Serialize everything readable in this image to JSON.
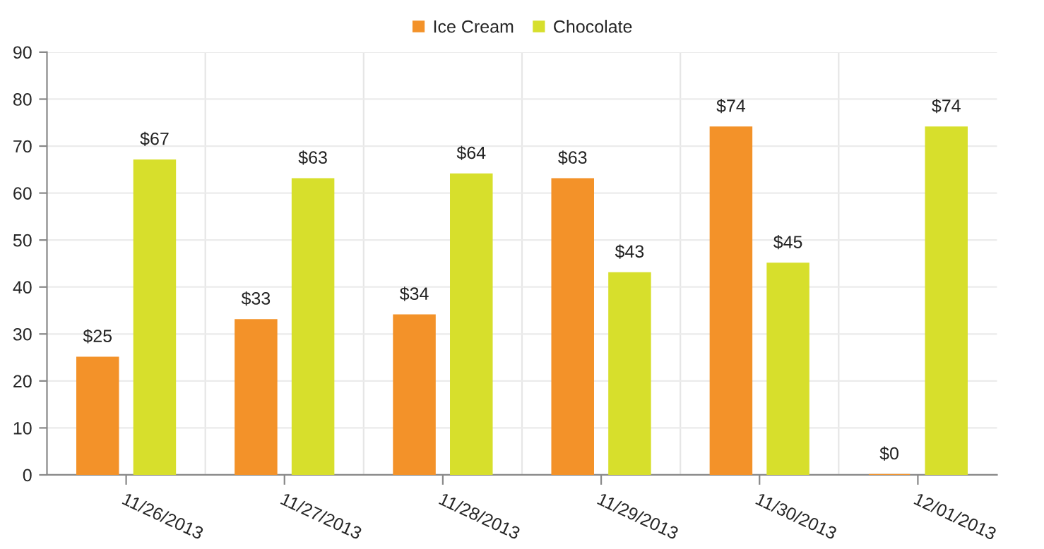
{
  "chart_data": {
    "type": "bar",
    "categories": [
      "11/26/2013",
      "11/27/2013",
      "11/28/2013",
      "11/29/2013",
      "11/30/2013",
      "12/01/2013"
    ],
    "series": [
      {
        "name": "Ice Cream",
        "color": "#f39229",
        "values": [
          25,
          33,
          34,
          63,
          74,
          0
        ],
        "value_labels": [
          "$25",
          "$33",
          "$34",
          "$63",
          "$74",
          "$0"
        ]
      },
      {
        "name": "Chocolate",
        "color": "#d7df2c",
        "values": [
          67,
          63,
          64,
          43,
          45,
          74
        ],
        "value_labels": [
          "$67",
          "$63",
          "$64",
          "$43",
          "$45",
          "$74"
        ]
      }
    ],
    "ylim": [
      0,
      90
    ],
    "yticks": [
      0,
      10,
      20,
      30,
      40,
      50,
      60,
      70,
      80,
      90
    ],
    "grid": true,
    "legend": "top"
  }
}
